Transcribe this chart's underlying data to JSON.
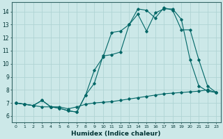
{
  "xlabel": "Humidex (Indice chaleur)",
  "background_color": "#cce8e8",
  "grid_color": "#b0d4d4",
  "line_color": "#006666",
  "xlim": [
    -0.5,
    23.5
  ],
  "ylim": [
    5.5,
    14.7
  ],
  "xticks": [
    0,
    1,
    2,
    3,
    4,
    5,
    6,
    7,
    8,
    9,
    10,
    11,
    12,
    13,
    14,
    15,
    16,
    17,
    18,
    19,
    20,
    21,
    22,
    23
  ],
  "yticks": [
    6,
    7,
    8,
    9,
    10,
    11,
    12,
    13,
    14
  ],
  "line1_x": [
    0,
    1,
    2,
    3,
    4,
    5,
    6,
    7,
    8,
    9,
    10,
    11,
    12,
    13,
    14,
    15,
    16,
    17,
    18,
    19,
    20,
    21,
    22,
    23
  ],
  "line1_y": [
    7.0,
    6.9,
    6.8,
    6.7,
    6.7,
    6.7,
    6.55,
    6.7,
    6.9,
    7.0,
    7.05,
    7.1,
    7.2,
    7.3,
    7.4,
    7.5,
    7.6,
    7.7,
    7.75,
    7.8,
    7.85,
    7.9,
    8.0,
    7.8
  ],
  "line2_x": [
    0,
    1,
    2,
    3,
    4,
    5,
    6,
    7,
    8,
    9,
    10,
    11,
    12,
    13,
    14,
    15,
    16,
    17,
    18,
    19,
    20,
    21,
    22,
    23
  ],
  "line2_y": [
    7.0,
    6.9,
    6.8,
    7.2,
    6.7,
    6.6,
    6.4,
    6.3,
    7.6,
    8.5,
    10.6,
    10.7,
    10.9,
    13.0,
    13.8,
    12.5,
    13.9,
    14.2,
    14.2,
    13.4,
    10.3,
    8.3,
    7.9,
    7.8
  ],
  "line3_x": [
    0,
    1,
    2,
    3,
    4,
    5,
    6,
    7,
    8,
    9,
    10,
    11,
    12,
    13,
    14,
    15,
    16,
    17,
    18,
    19,
    20,
    21,
    22,
    23
  ],
  "line3_y": [
    7.0,
    6.9,
    6.8,
    7.2,
    6.7,
    6.6,
    6.4,
    6.3,
    7.6,
    9.5,
    10.5,
    12.4,
    12.5,
    13.0,
    14.2,
    14.1,
    13.5,
    14.3,
    14.1,
    12.6,
    12.6,
    10.3,
    8.3,
    7.8
  ]
}
